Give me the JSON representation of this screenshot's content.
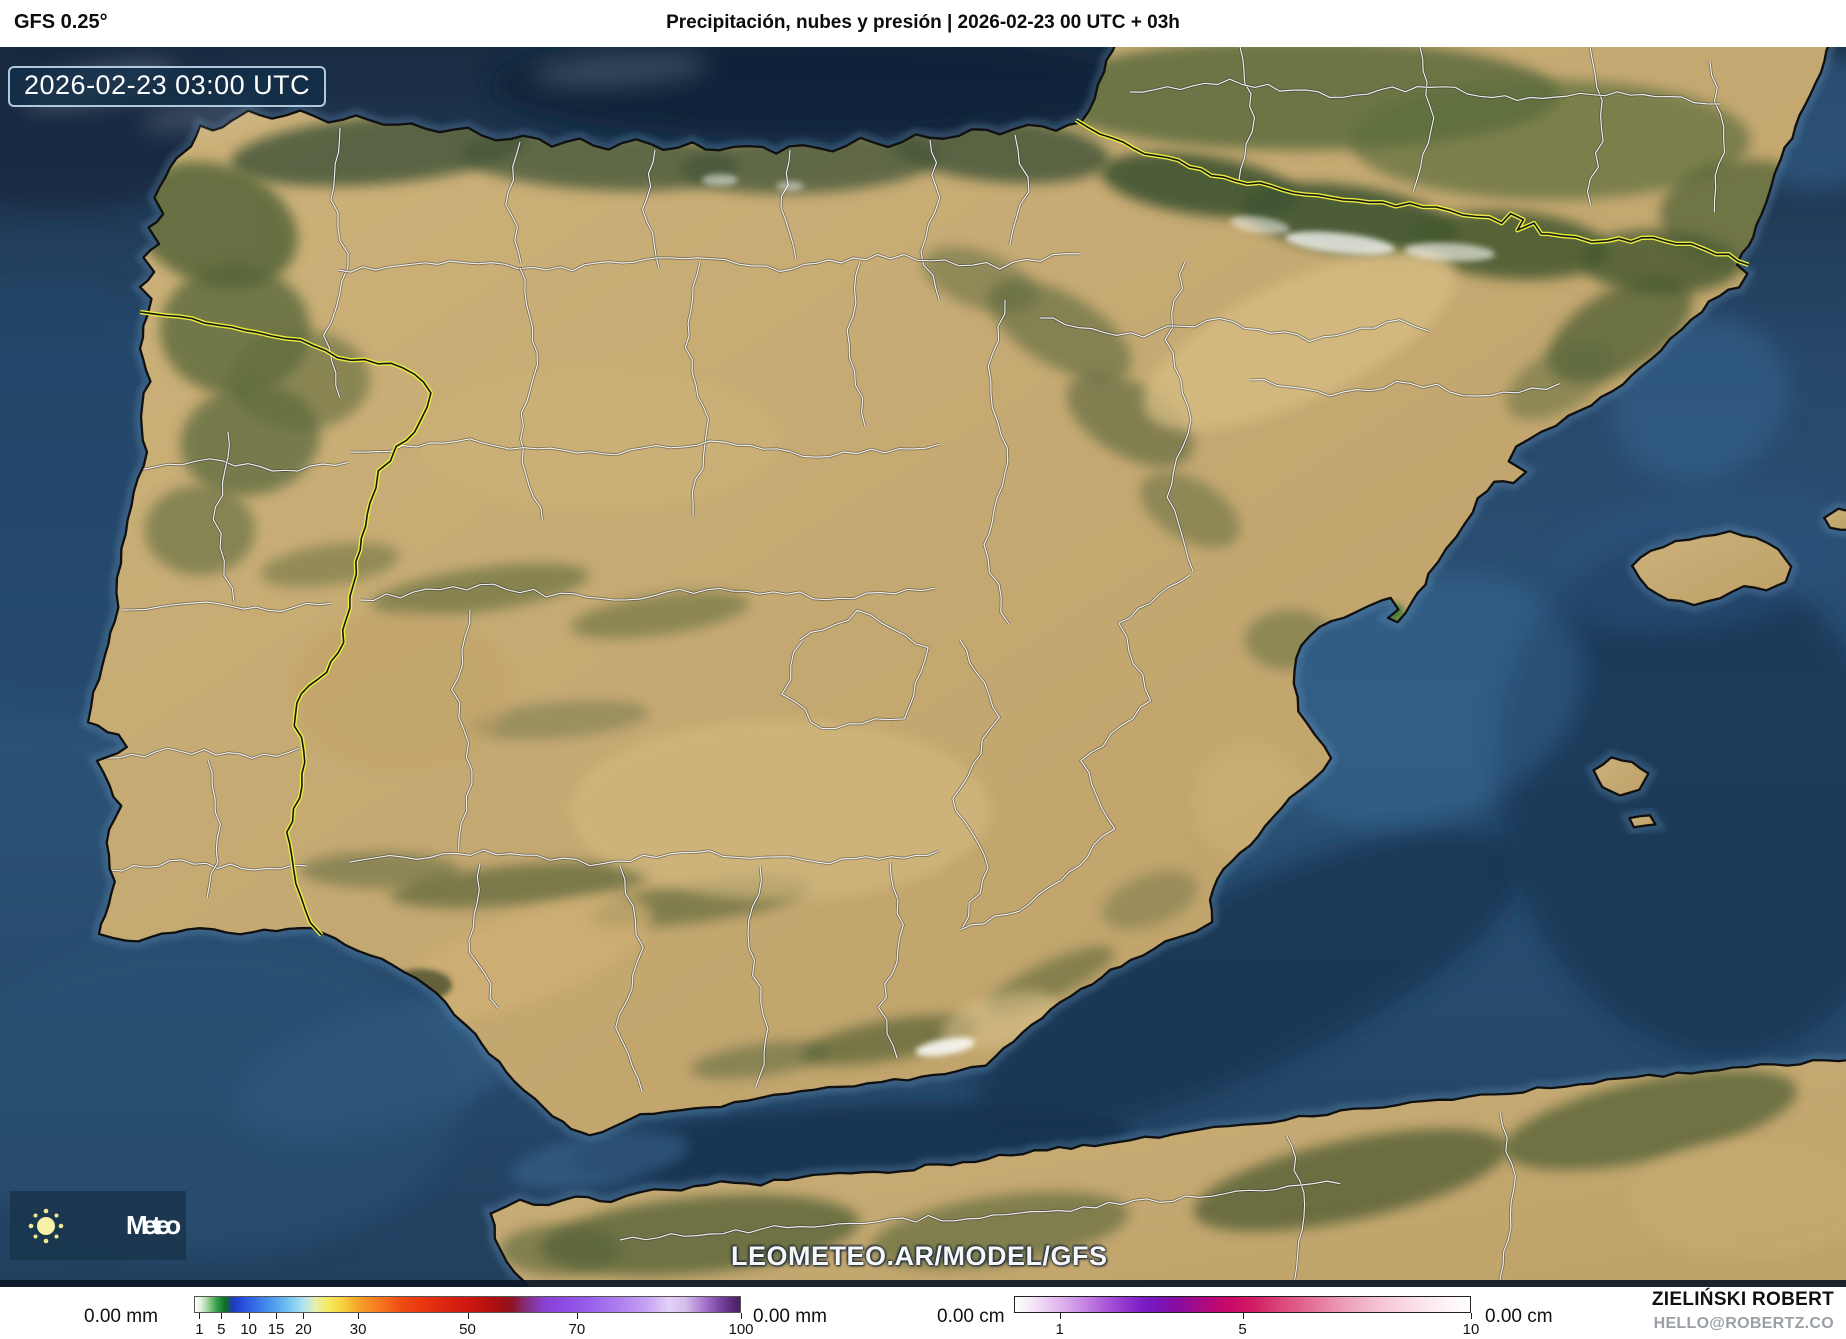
{
  "header": {
    "model_label": "GFS 0.25°",
    "title": "Precipitación, nubes y presión | 2026-02-23 00 UTC + 03h"
  },
  "map_overlay": {
    "timestamp": "2026-02-23 03:00 UTC",
    "watermark": "LEOMETEO.AR/MODEL/GFS",
    "logo": {
      "icon": "sun-icon",
      "text": "Meteo"
    }
  },
  "legend": {
    "precipitation": {
      "unit": "mm",
      "left_label": "0.00 mm",
      "right_label": "0.00 mm",
      "min": 0,
      "max": 100,
      "ticks": [
        1,
        5,
        10,
        15,
        20,
        30,
        50,
        70,
        100
      ],
      "gradient": [
        [
          0,
          "#ffffff"
        ],
        [
          1.2,
          "#ddefd8"
        ],
        [
          2.5,
          "#93cd90"
        ],
        [
          4,
          "#33a04a"
        ],
        [
          5.5,
          "#0f7020"
        ],
        [
          7,
          "#2038c0"
        ],
        [
          9,
          "#2b51dc"
        ],
        [
          12,
          "#3a7ce9"
        ],
        [
          15,
          "#55a5ef"
        ],
        [
          18,
          "#83cdf2"
        ],
        [
          20,
          "#b4e3ee"
        ],
        [
          22,
          "#e6f0ae"
        ],
        [
          24.5,
          "#f4e95e"
        ],
        [
          27,
          "#f6d23f"
        ],
        [
          30,
          "#f7a22b"
        ],
        [
          34,
          "#f5761f"
        ],
        [
          38,
          "#f04a14"
        ],
        [
          44,
          "#e22c10"
        ],
        [
          50,
          "#cf1810"
        ],
        [
          55,
          "#ad0f0e"
        ],
        [
          58,
          "#8e1220"
        ],
        [
          61,
          "#863083"
        ],
        [
          64,
          "#8840cf"
        ],
        [
          68,
          "#8d4ce6"
        ],
        [
          73,
          "#9a63ec"
        ],
        [
          78,
          "#ae80f0"
        ],
        [
          83,
          "#c7a3f3"
        ],
        [
          87,
          "#e2d2f8"
        ],
        [
          90,
          "#d3bdeb"
        ],
        [
          93,
          "#ad7fd0"
        ],
        [
          96,
          "#7f49a4"
        ],
        [
          98.5,
          "#5b2a7c"
        ],
        [
          100,
          "#452063"
        ]
      ]
    },
    "snow": {
      "unit": "cm",
      "left_label": "0.00 cm",
      "right_label": "0.00 cm",
      "min": 0,
      "max": 10,
      "ticks": [
        1,
        5,
        10
      ],
      "gradient": [
        [
          0,
          "#ffffff"
        ],
        [
          4,
          "#f4e4f7"
        ],
        [
          8,
          "#e6c4f0"
        ],
        [
          12,
          "#d5a4e9"
        ],
        [
          16,
          "#c17ee1"
        ],
        [
          20,
          "#ab58d8"
        ],
        [
          24,
          "#9238cf"
        ],
        [
          28,
          "#7a1ec5"
        ],
        [
          32,
          "#7a12b4"
        ],
        [
          36,
          "#8a0da0"
        ],
        [
          40,
          "#a30a89"
        ],
        [
          44,
          "#bc0875"
        ],
        [
          48,
          "#cb0b66"
        ],
        [
          52,
          "#d11b62"
        ],
        [
          58,
          "#da4477"
        ],
        [
          65,
          "#e37094"
        ],
        [
          72,
          "#ec9bb6"
        ],
        [
          80,
          "#f4c3d4"
        ],
        [
          88,
          "#fae0ea"
        ],
        [
          94,
          "#fdf1f6"
        ],
        [
          100,
          "#ffffff"
        ]
      ]
    }
  },
  "credit": {
    "name": "ZIELIŃSKI ROBERT",
    "email": "HELLO@ROBERTZ.CO"
  },
  "colors": {
    "country_border": "#e9ed3e",
    "admin_border": "#f6f6f6",
    "coastline": "#101010",
    "ocean": "#2a4e72",
    "land": "#c4a871",
    "timestamp_bg": "#122e48",
    "logo_bg": "#1a374f"
  }
}
